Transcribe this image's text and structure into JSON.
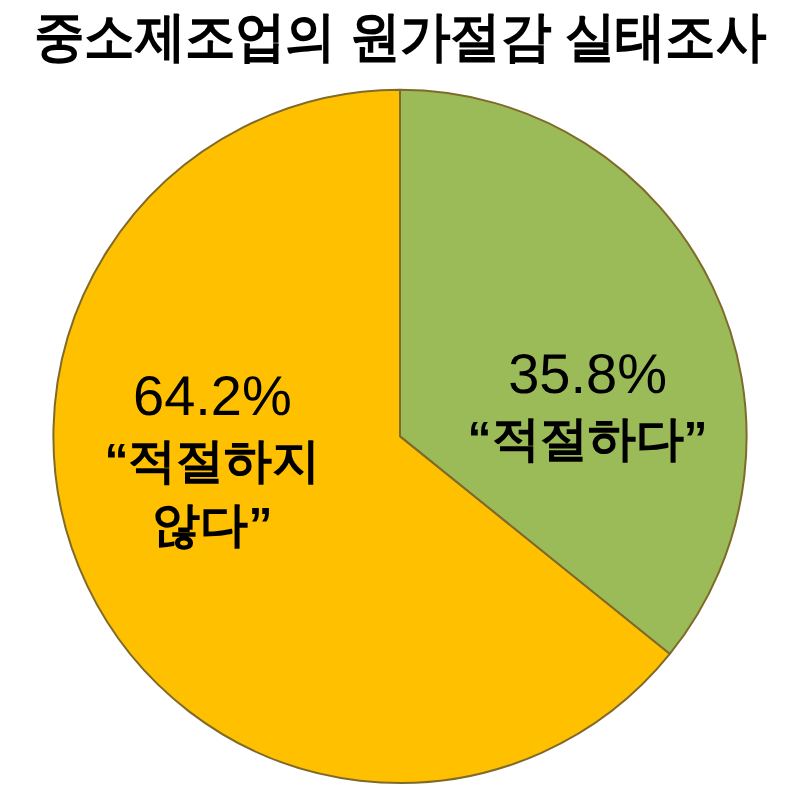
{
  "chart_data": {
    "type": "pie",
    "title": "중소제조업의 원가절감 실태조사",
    "categories": [
      "“적절하다”",
      "“적절하지 않다”"
    ],
    "values": [
      35.8,
      64.2
    ],
    "colors": [
      "#9bbb59",
      "#ffc000"
    ],
    "value_labels": [
      "35.8%",
      "64.2%"
    ],
    "legend": false
  }
}
